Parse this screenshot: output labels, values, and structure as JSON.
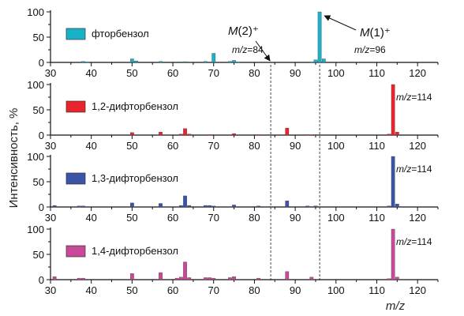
{
  "chart_data": [
    {
      "type": "bar",
      "legend": "фторбензол",
      "color": "#1ab0c8",
      "xlim": [
        30,
        125
      ],
      "ylim": [
        0,
        100
      ],
      "yticks": [
        "0",
        "50",
        "100"
      ],
      "xticks": [
        "30",
        "40",
        "50",
        "60",
        "70",
        "80",
        "90",
        "100",
        "110",
        "120"
      ],
      "peak_label": "",
      "points": [
        {
          "x": 38,
          "y": 2
        },
        {
          "x": 39,
          "y": 1
        },
        {
          "x": 50,
          "y": 7
        },
        {
          "x": 51,
          "y": 3
        },
        {
          "x": 57,
          "y": 2
        },
        {
          "x": 63,
          "y": 1.5
        },
        {
          "x": 68,
          "y": 2
        },
        {
          "x": 70,
          "y": 18
        },
        {
          "x": 74,
          "y": 2
        },
        {
          "x": 75,
          "y": 4
        },
        {
          "x": 76,
          "y": 1
        },
        {
          "x": 94,
          "y": 1
        },
        {
          "x": 95,
          "y": 5
        },
        {
          "x": 96,
          "y": 100
        },
        {
          "x": 97,
          "y": 7
        }
      ]
    },
    {
      "type": "bar",
      "legend": "1,2-дифторбензол",
      "color": "#e8242c",
      "xlim": [
        30,
        125
      ],
      "ylim": [
        0,
        100
      ],
      "yticks": [
        "0",
        "50",
        "100"
      ],
      "xticks": [
        "30",
        "40",
        "50",
        "60",
        "70",
        "80",
        "90",
        "100",
        "110",
        "120"
      ],
      "peak_label": "m/z=114",
      "points": [
        {
          "x": 50,
          "y": 5
        },
        {
          "x": 57,
          "y": 6
        },
        {
          "x": 62,
          "y": 2
        },
        {
          "x": 63,
          "y": 13
        },
        {
          "x": 64,
          "y": 2
        },
        {
          "x": 69,
          "y": 1
        },
        {
          "x": 75,
          "y": 3
        },
        {
          "x": 81,
          "y": 1
        },
        {
          "x": 88,
          "y": 14
        },
        {
          "x": 93,
          "y": 1
        },
        {
          "x": 95,
          "y": 1
        },
        {
          "x": 113,
          "y": 2
        },
        {
          "x": 114,
          "y": 100
        },
        {
          "x": 115,
          "y": 6
        }
      ]
    },
    {
      "type": "bar",
      "legend": "1,3-дифторбензол",
      "color": "#3a55a6",
      "xlim": [
        30,
        125
      ],
      "ylim": [
        0,
        100
      ],
      "yticks": [
        "0",
        "50",
        "100"
      ],
      "xticks": [
        "30",
        "40",
        "50",
        "60",
        "70",
        "80",
        "90",
        "100",
        "110",
        "120"
      ],
      "peak_label": "m/z=114",
      "points": [
        {
          "x": 31,
          "y": 3
        },
        {
          "x": 37,
          "y": 2
        },
        {
          "x": 38,
          "y": 2
        },
        {
          "x": 50,
          "y": 8
        },
        {
          "x": 57,
          "y": 7
        },
        {
          "x": 62,
          "y": 3
        },
        {
          "x": 63,
          "y": 22
        },
        {
          "x": 64,
          "y": 3
        },
        {
          "x": 68,
          "y": 3
        },
        {
          "x": 69,
          "y": 3
        },
        {
          "x": 70,
          "y": 2
        },
        {
          "x": 75,
          "y": 4
        },
        {
          "x": 81,
          "y": 2
        },
        {
          "x": 88,
          "y": 12
        },
        {
          "x": 93,
          "y": 2
        },
        {
          "x": 95,
          "y": 2
        },
        {
          "x": 113,
          "y": 2
        },
        {
          "x": 114,
          "y": 100
        },
        {
          "x": 115,
          "y": 6
        }
      ]
    },
    {
      "type": "bar",
      "legend": "1,4-дифторбензол",
      "color": "#c8489a",
      "xlim": [
        30,
        125
      ],
      "ylim": [
        0,
        100
      ],
      "yticks": [
        "0",
        "50",
        "100"
      ],
      "xticks": [
        "30",
        "40",
        "50",
        "60",
        "70",
        "80",
        "90",
        "100",
        "110",
        "120"
      ],
      "peak_label": "m/z=114",
      "points": [
        {
          "x": 31,
          "y": 6
        },
        {
          "x": 37,
          "y": 3
        },
        {
          "x": 38,
          "y": 3
        },
        {
          "x": 50,
          "y": 12
        },
        {
          "x": 57,
          "y": 14
        },
        {
          "x": 61,
          "y": 3
        },
        {
          "x": 62,
          "y": 5
        },
        {
          "x": 63,
          "y": 35
        },
        {
          "x": 64,
          "y": 4
        },
        {
          "x": 68,
          "y": 4
        },
        {
          "x": 69,
          "y": 4
        },
        {
          "x": 70,
          "y": 3
        },
        {
          "x": 74,
          "y": 4
        },
        {
          "x": 75,
          "y": 6
        },
        {
          "x": 81,
          "y": 3
        },
        {
          "x": 88,
          "y": 16
        },
        {
          "x": 94,
          "y": 5
        },
        {
          "x": 113,
          "y": 2
        },
        {
          "x": 114,
          "y": 100
        },
        {
          "x": 115,
          "y": 5
        }
      ]
    }
  ],
  "xlabel": "m/z",
  "ylabel": "Интенсивность, %",
  "reference_lines": [
    84,
    96
  ],
  "annotations": {
    "m2": {
      "label": "M(2)⁺",
      "mz": "m/z=84",
      "x": 84
    },
    "m1": {
      "label": "M(1)⁺",
      "mz": "m/z=96",
      "x": 96
    }
  }
}
